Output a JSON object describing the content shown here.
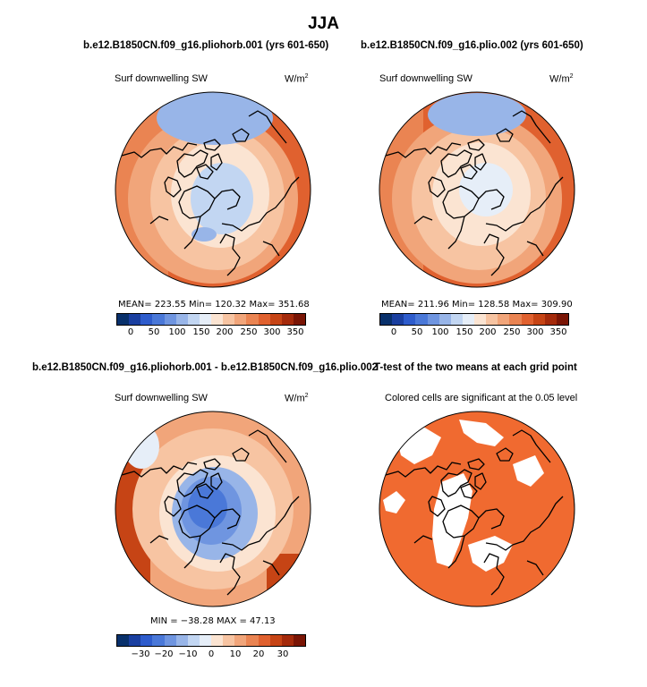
{
  "title": "JJA",
  "panels": [
    {
      "title": "b.e12.B1850CN.f09_g16.pliohorb.001 (yrs 601-650)",
      "variable": "Surf downwelling SW",
      "units": "W/m",
      "units_sup": "2",
      "stats": {
        "mean": "223.55",
        "min": "120.32",
        "max": "351.68"
      },
      "stats_text": "MEAN= 223.55   Min= 120.32   Max= 351.68",
      "colorbar_labels": [
        "0",
        "50",
        "100",
        "150",
        "200",
        "250",
        "300",
        "350"
      ]
    },
    {
      "title": "b.e12.B1850CN.f09_g16.plio.002 (yrs 601-650)",
      "variable": "Surf downwelling SW",
      "units": "W/m",
      "units_sup": "2",
      "stats": {
        "mean": "211.96",
        "min": "128.58",
        "max": "309.90"
      },
      "stats_text": "MEAN= 211.96   Min= 128.58   Max= 309.90",
      "colorbar_labels": [
        "0",
        "50",
        "100",
        "150",
        "200",
        "250",
        "300",
        "350"
      ]
    },
    {
      "title": "b.e12.B1850CN.f09_g16.pliohorb.001 - b.e12.B1850CN.f09_g16.plio.002",
      "variable": "Surf downwelling SW",
      "units": "W/m",
      "units_sup": "2",
      "stats": {
        "min": "-38.28",
        "max": "47.13"
      },
      "stats_text": "MIN = −38.28  MAX =  47.13",
      "colorbar_labels": [
        "−30",
        "−20",
        "−10",
        "0",
        "10",
        "20",
        "30"
      ]
    },
    {
      "title": "T-test of the two means at each grid point",
      "subtitle": "Colored cells are significant at the 0.05 level"
    }
  ],
  "colors": {
    "scale": [
      "#08306b",
      "#1a3fa0",
      "#2e5ccc",
      "#4a78d8",
      "#6f95e0",
      "#98b5e8",
      "#c2d6f2",
      "#e6eef8",
      "#fbe4d2",
      "#f7c4a2",
      "#f1a57a",
      "#ea8452",
      "#e0612f",
      "#c64415",
      "#a42a0b",
      "#7a1505"
    ],
    "ttest": "#f06a30"
  }
}
